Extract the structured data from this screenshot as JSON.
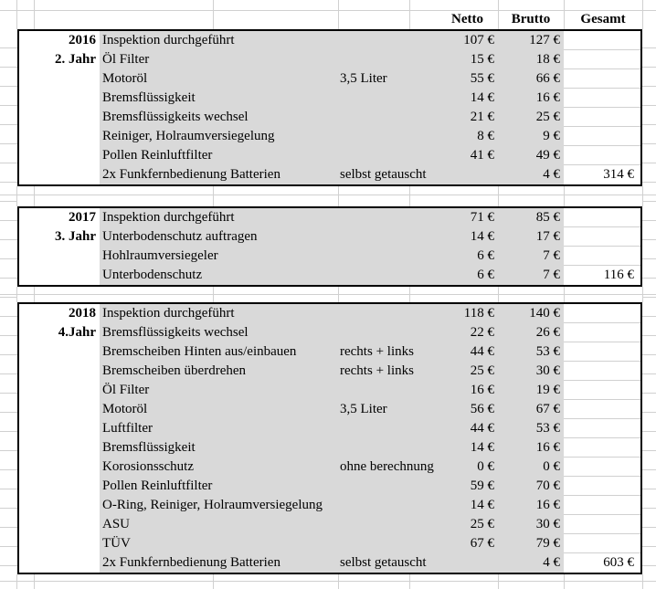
{
  "header": {
    "netto": "Netto",
    "brutto": "Brutto",
    "gesamt": "Gesamt"
  },
  "colors": {
    "fill": "#d9d9d9",
    "gridline": "#d0d0d0",
    "block_border": "#000000"
  },
  "blocks": [
    {
      "year": "2016",
      "jahr": "2. Jahr",
      "gesamt": "314 €",
      "rows": [
        {
          "service": "Inspektion durchgeführt",
          "note": "",
          "netto": "107 €",
          "brutto": "127 €"
        },
        {
          "service": "Öl Filter",
          "note": "",
          "netto": "15 €",
          "brutto": "18 €"
        },
        {
          "service": "Motoröl",
          "note": "3,5 Liter",
          "netto": "55 €",
          "brutto": "66 €"
        },
        {
          "service": "Bremsflüssigkeit",
          "note": "",
          "netto": "14 €",
          "brutto": "16 €"
        },
        {
          "service": "Bremsflüssigkeits wechsel",
          "note": "",
          "netto": "21 €",
          "brutto": "25 €"
        },
        {
          "service": "Reiniger, Holraumversiegelung",
          "note": "",
          "netto": "8 €",
          "brutto": "9 €"
        },
        {
          "service": "Pollen Reinluftfilter",
          "note": "",
          "netto": "41 €",
          "brutto": "49 €"
        },
        {
          "service": "2x Funkfernbedienung Batterien",
          "note": "selbst getauscht",
          "netto": "",
          "brutto": "4 €"
        }
      ]
    },
    {
      "year": "2017",
      "jahr": "3. Jahr",
      "gesamt": "116 €",
      "rows": [
        {
          "service": "Inspektion durchgeführt",
          "note": "",
          "netto": "71 €",
          "brutto": "85 €"
        },
        {
          "service": "Unterbodenschutz auftragen",
          "note": "",
          "netto": "14 €",
          "brutto": "17 €"
        },
        {
          "service": "Hohlraumversiegeler",
          "note": "",
          "netto": "6 €",
          "brutto": "7 €"
        },
        {
          "service": "Unterbodenschutz",
          "note": "",
          "netto": "6 €",
          "brutto": "7 €"
        }
      ]
    },
    {
      "year": "2018",
      "jahr": "4.Jahr",
      "gesamt": "603 €",
      "rows": [
        {
          "service": "Inspektion durchgeführt",
          "note": "",
          "netto": "118 €",
          "brutto": "140 €"
        },
        {
          "service": "Bremsflüssigkeits wechsel",
          "note": "",
          "netto": "22 €",
          "brutto": "26 €"
        },
        {
          "service": "Bremscheiben Hinten aus/einbauen",
          "note": "rechts + links",
          "netto": "44 €",
          "brutto": "53 €"
        },
        {
          "service": "Bremscheiben überdrehen",
          "note": "rechts + links",
          "netto": "25 €",
          "brutto": "30 €"
        },
        {
          "service": "Öl Filter",
          "note": "",
          "netto": "16 €",
          "brutto": "19 €"
        },
        {
          "service": "Motoröl",
          "note": "3,5 Liter",
          "netto": "56 €",
          "brutto": "67 €"
        },
        {
          "service": "Luftfilter",
          "note": "",
          "netto": "44 €",
          "brutto": "53 €"
        },
        {
          "service": "Bremsflüssigkeit",
          "note": "",
          "netto": "14 €",
          "brutto": "16 €"
        },
        {
          "service": "Korosionsschutz",
          "note": "ohne berechnung",
          "netto": "0 €",
          "brutto": "0 €"
        },
        {
          "service": "Pollen Reinluftfilter",
          "note": "",
          "netto": "59 €",
          "brutto": "70 €"
        },
        {
          "service": "O-Ring, Reiniger, Holraumversiegelung",
          "note": "",
          "netto": "14 €",
          "brutto": "16 €"
        },
        {
          "service": "ASU",
          "note": "",
          "netto": "25 €",
          "brutto": "30 €"
        },
        {
          "service": "TÜV",
          "note": "",
          "netto": "67 €",
          "brutto": "79 €"
        },
        {
          "service": "2x Funkfernbedienung Batterien",
          "note": "selbst getauscht",
          "netto": "",
          "brutto": "4 €"
        }
      ]
    }
  ]
}
